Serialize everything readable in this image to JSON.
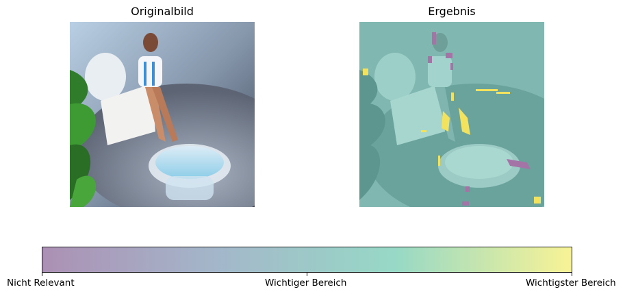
{
  "panels": {
    "left_title": "Originalbild",
    "right_title": "Ergebnis"
  },
  "colorbar": {
    "labels": [
      "Nicht Relevant",
      "Wichtiger Bereich",
      "Wichtigster Bereich"
    ],
    "stops": [
      "#a385ad",
      "#9ab0c5",
      "#8cd5c0",
      "#f8f28b"
    ]
  }
}
